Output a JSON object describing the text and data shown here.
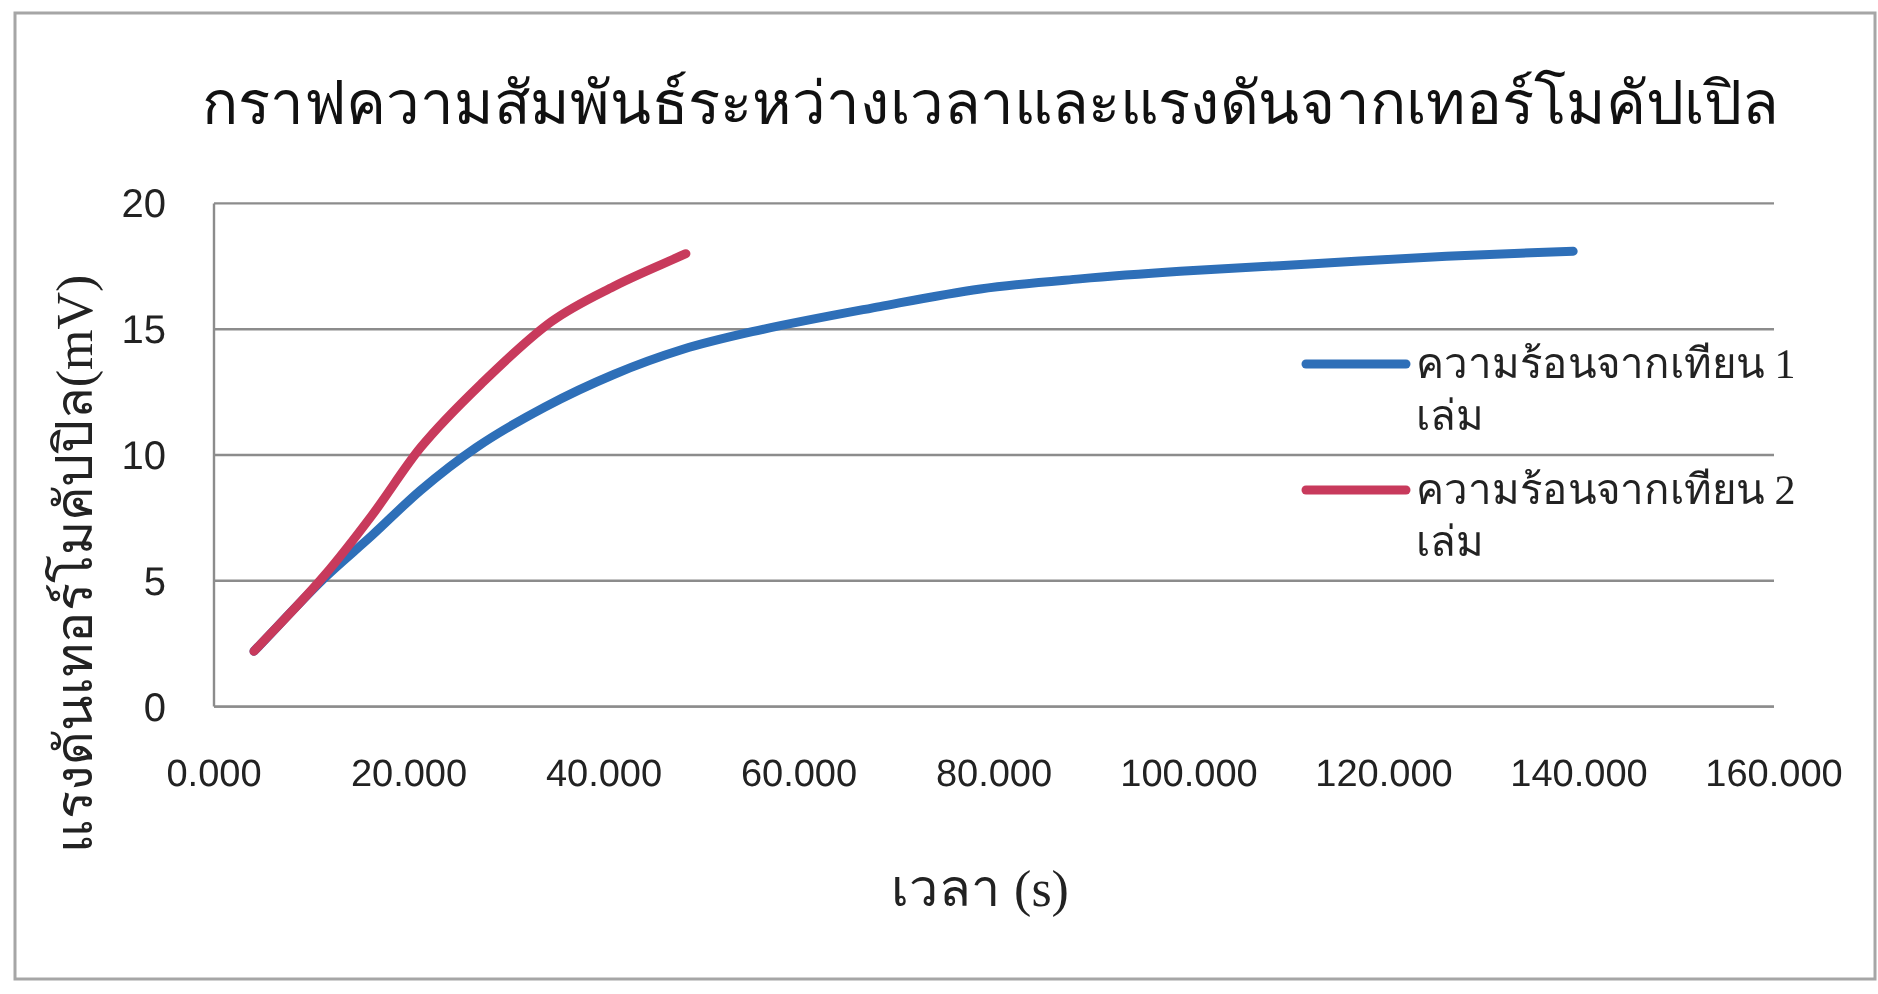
{
  "chart_data": {
    "type": "line",
    "title": "กราฟความสัมพันธ์ระหว่างเวลาและแรงดันจากเทอร์โมคัปเปิล",
    "xlabel": "เวลา (s)",
    "ylabel": "แรงดันเทอร์โมคัปปิล(mV)",
    "xlim": [
      0,
      160
    ],
    "xticks": [
      {
        "value": 0,
        "label": "0.000"
      },
      {
        "value": 20,
        "label": "20.000"
      },
      {
        "value": 40,
        "label": "40.000"
      },
      {
        "value": 60,
        "label": "60.000"
      },
      {
        "value": 80,
        "label": "80.000"
      },
      {
        "value": 100,
        "label": "100.000"
      },
      {
        "value": 120,
        "label": "120.000"
      },
      {
        "value": 140,
        "label": "140.000"
      },
      {
        "value": 160,
        "label": "160.000"
      }
    ],
    "ylim": [
      0,
      20
    ],
    "yticks": [
      0,
      5,
      10,
      15,
      20
    ],
    "grid": "y",
    "legend": "right",
    "series": [
      {
        "name": "ความร้อนจากเทียน 1 เล่ม",
        "color": "#2e6fb8",
        "x": [
          4.1,
          11.3,
          16.2,
          21.2,
          26.9,
          33.9,
          41.0,
          48.1,
          55.2,
          68.3,
          78.6,
          88.8,
          99.1,
          112.8,
          126.4,
          139.4
        ],
        "values": [
          2.2,
          5.1,
          6.8,
          8.6,
          10.3,
          11.9,
          13.2,
          14.2,
          14.9,
          15.9,
          16.6,
          17.0,
          17.3,
          17.6,
          17.9,
          18.1
        ]
      },
      {
        "name": "ความร้อนจากเทียน 2 เล่ม",
        "color": "#c83a5c",
        "x": [
          4.1,
          11.3,
          16.2,
          21.2,
          27.6,
          34.6,
          41.0,
          48.4
        ],
        "values": [
          2.2,
          5.2,
          7.6,
          10.3,
          12.9,
          15.3,
          16.7,
          18.0
        ]
      }
    ]
  }
}
